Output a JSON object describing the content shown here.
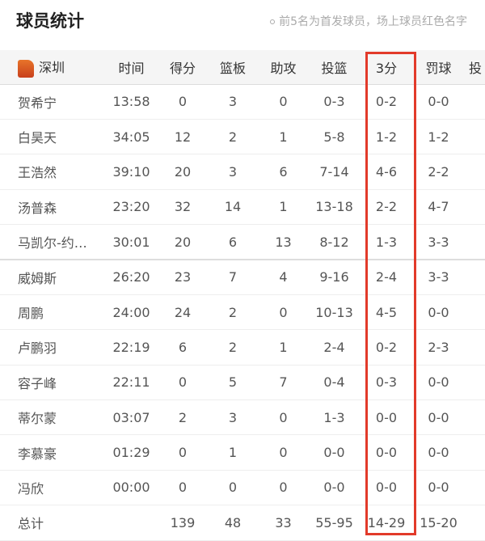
{
  "header": {
    "title": "球员统计",
    "note": "前5名为首发球员，场上球员红色名字"
  },
  "team": {
    "name": "深圳"
  },
  "columns": [
    "时间",
    "得分",
    "篮板",
    "助攻",
    "投篮",
    "3分",
    "罚球",
    "投"
  ],
  "players": [
    [
      "贺希宁",
      "13:58",
      "0",
      "3",
      "0",
      "0-3",
      "0-2",
      "0-0"
    ],
    [
      "白昊天",
      "34:05",
      "12",
      "2",
      "1",
      "5-8",
      "1-2",
      "1-2"
    ],
    [
      "王浩然",
      "39:10",
      "20",
      "3",
      "6",
      "7-14",
      "4-6",
      "2-2"
    ],
    [
      "汤普森",
      "23:20",
      "32",
      "14",
      "1",
      "13-18",
      "2-2",
      "4-7"
    ],
    [
      "马凯尔-约…",
      "30:01",
      "20",
      "6",
      "13",
      "8-12",
      "1-3",
      "3-3"
    ],
    [
      "威姆斯",
      "26:20",
      "23",
      "7",
      "4",
      "9-16",
      "2-4",
      "3-3"
    ],
    [
      "周鹏",
      "24:00",
      "24",
      "2",
      "0",
      "10-13",
      "4-5",
      "0-0"
    ],
    [
      "卢鹏羽",
      "22:19",
      "6",
      "2",
      "1",
      "2-4",
      "0-2",
      "2-3"
    ],
    [
      "容子峰",
      "22:11",
      "0",
      "5",
      "7",
      "0-4",
      "0-3",
      "0-0"
    ],
    [
      "蒂尔蒙",
      "03:07",
      "2",
      "3",
      "0",
      "1-3",
      "0-0",
      "0-0"
    ],
    [
      "李慕豪",
      "01:29",
      "0",
      "1",
      "0",
      "0-0",
      "0-0",
      "0-0"
    ],
    [
      "冯欣",
      "00:00",
      "0",
      "0",
      "0",
      "0-0",
      "0-0",
      "0-0"
    ]
  ],
  "totals": [
    "总计",
    "",
    "139",
    "48",
    "33",
    "55-95",
    "14-29",
    "15-20"
  ],
  "highlight_color": "#e23a2a"
}
